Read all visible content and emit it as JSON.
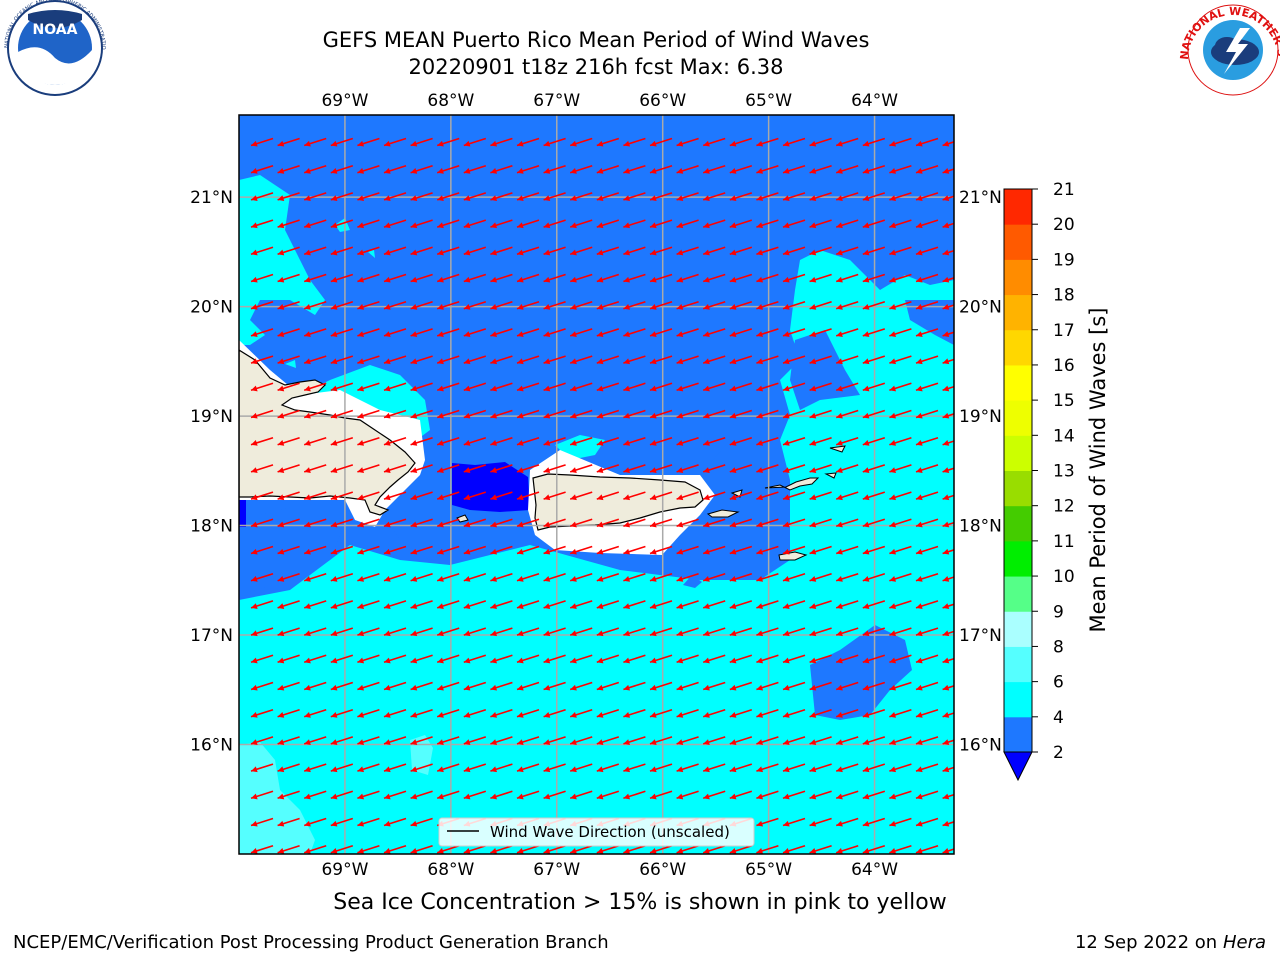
{
  "header": {
    "title_line1": "GEFS MEAN Puerto Rico Mean Period of Wind Waves",
    "title_line2": "20220901 t18z 216h fcst   Max: 6.38"
  },
  "logos": {
    "left": "NOAA",
    "left_ring": "NATIONAL OCEANIC AND ATMOSPHERIC ADMINISTRATION · U.S. DEPARTMENT OF COMMERCE",
    "right_ring": "NATIONAL WEATHER SERVICE"
  },
  "map": {
    "lon_labels": [
      "69°W",
      "68°W",
      "67°W",
      "66°W",
      "65°W",
      "64°W"
    ],
    "lat_labels": [
      "21°N",
      "20°N",
      "19°N",
      "18°N",
      "17°N",
      "16°N"
    ],
    "lon_range": [
      -70.0,
      -63.25
    ],
    "lat_range": [
      15.0,
      21.75
    ],
    "wave_direction": "arrows point toward the west-southwest",
    "legend_label": "Wind Wave Direction (unscaled)",
    "colors": {
      "sea_2_4": "#1e78ff",
      "sea_4_6": "#00ffff",
      "sea_6_8": "#55ffff",
      "sea_lt2": "#0000ff",
      "land": "#efecdc",
      "arrow": "#ff0000"
    }
  },
  "colorbar": {
    "title": "Mean Period of Wind Waves [s]",
    "ticks": [
      "2",
      "4",
      "6",
      "8",
      "9",
      "10",
      "11",
      "12",
      "13",
      "14",
      "15",
      "16",
      "17",
      "18",
      "19",
      "20",
      "21"
    ],
    "colors": [
      "#1e78ff",
      "#00ffff",
      "#55ffff",
      "#aaffff",
      "#55ff88",
      "#00ee00",
      "#44cc00",
      "#99dd00",
      "#ccff00",
      "#eeff00",
      "#ffff00",
      "#ffd700",
      "#ffb300",
      "#ff8c00",
      "#ff5a00",
      "#ff2800"
    ],
    "extend_color": "#0000ff"
  },
  "footer": {
    "note": "Sea Ice Concentration > 15% is shown in pink to yellow",
    "left": "NCEP/EMC/Verification Post Processing Product Generation Branch",
    "date": "12 Sep 2022 on",
    "machine": "Hera"
  }
}
